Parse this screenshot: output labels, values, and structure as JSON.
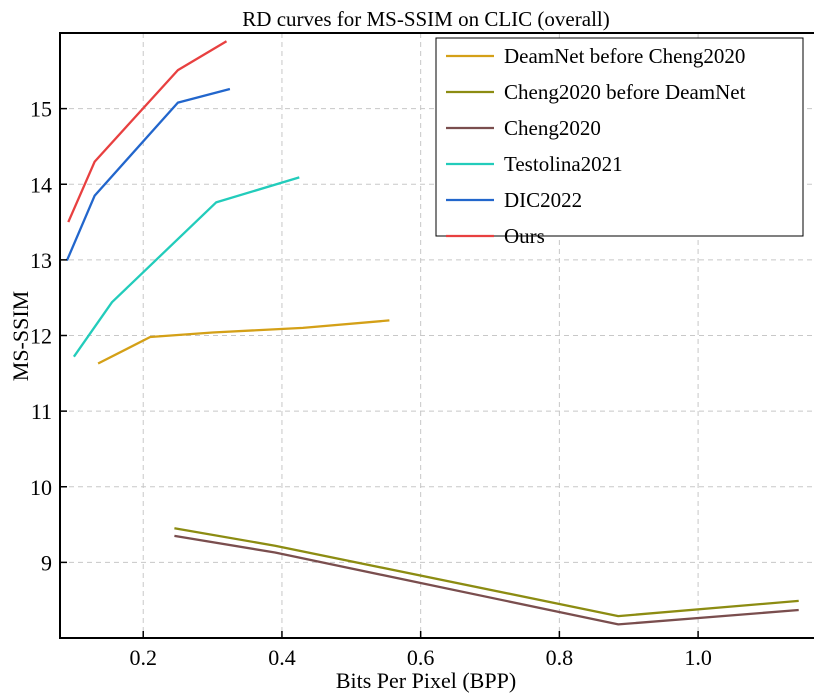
{
  "chart_data": {
    "type": "line",
    "title": "RD curves for MS-SSIM on CLIC (overall)",
    "xlabel": "Bits Per Pixel (BPP)",
    "ylabel": "MS-SSIM",
    "xlim": [
      0.08,
      1.17
    ],
    "ylim": [
      8.0,
      16.0
    ],
    "xticks": [
      0.2,
      0.4,
      0.6,
      0.8,
      1.0
    ],
    "yticks": [
      9,
      10,
      11,
      12,
      13,
      14,
      15
    ],
    "grid": true,
    "legend_position": "top-right",
    "series": [
      {
        "name": "DeamNet before Cheng2020",
        "color": "#d4a017",
        "x": [
          0.135,
          0.21,
          0.3,
          0.43,
          0.555
        ],
        "y": [
          11.63,
          11.98,
          12.04,
          12.1,
          12.2
        ]
      },
      {
        "name": "Cheng2020 before DeamNet",
        "color": "#8c8c12",
        "x": [
          0.245,
          0.39,
          0.885,
          1.145
        ],
        "y": [
          9.45,
          9.22,
          8.29,
          8.49
        ]
      },
      {
        "name": "Cheng2020",
        "color": "#7a4e4e",
        "x": [
          0.245,
          0.39,
          0.885,
          1.145
        ],
        "y": [
          9.35,
          9.13,
          8.18,
          8.37
        ]
      },
      {
        "name": "Testolina2021",
        "color": "#22ccbb",
        "x": [
          0.1,
          0.155,
          0.305,
          0.425
        ],
        "y": [
          11.72,
          12.44,
          13.76,
          14.09
        ]
      },
      {
        "name": "DIC2022",
        "color": "#2266cc",
        "x": [
          0.09,
          0.13,
          0.25,
          0.325
        ],
        "y": [
          12.99,
          13.85,
          15.08,
          15.26
        ]
      },
      {
        "name": "Ours",
        "color": "#e84040",
        "x": [
          0.092,
          0.13,
          0.25,
          0.32
        ],
        "y": [
          13.5,
          14.3,
          15.51,
          15.89
        ]
      }
    ]
  }
}
